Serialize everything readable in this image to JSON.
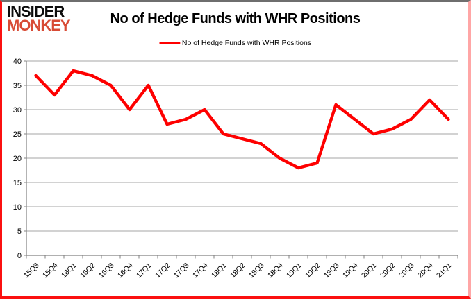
{
  "logo": {
    "top": "INSIDER",
    "bottom": "MONKEY",
    "top_color": "#0d0d0d",
    "bottom_color": "#d84b35"
  },
  "title": "No of Hedge Funds with WHR Positions",
  "legend": {
    "label": "No of Hedge Funds with WHR Positions",
    "swatch_color": "#fe0000"
  },
  "chart_data": {
    "type": "line",
    "title": "No of Hedge Funds with WHR Positions",
    "categories": [
      "15Q3",
      "15Q4",
      "16Q1",
      "16Q2",
      "16Q3",
      "16Q4",
      "17Q1",
      "17Q2",
      "17Q3",
      "17Q4",
      "18Q1",
      "18Q2",
      "18Q3",
      "18Q4",
      "19Q1",
      "19Q2",
      "19Q3",
      "19Q4",
      "20Q1",
      "20Q2",
      "20Q3",
      "20Q4",
      "21Q1"
    ],
    "series": [
      {
        "name": "No of Hedge Funds with WHR Positions",
        "color": "#fe0000",
        "values": [
          37,
          33,
          38,
          37,
          35,
          30,
          35,
          27,
          28,
          30,
          25,
          24,
          23,
          20,
          18,
          19,
          31,
          28,
          25,
          26,
          28,
          32,
          28
        ]
      }
    ],
    "xlabel": "",
    "ylabel": "",
    "ylim": [
      0,
      40
    ],
    "yticks": [
      0,
      5,
      10,
      15,
      20,
      25,
      30,
      35,
      40
    ],
    "grid": true,
    "gridline_color": "#a6a6a6",
    "axis_color": "#808080",
    "tick_label_color": "#000000",
    "legend_position": "top"
  },
  "frame": {
    "top_border": "#6e6e6e",
    "left_border": "#fb1010",
    "bottom_border": "#fb1010",
    "right_border": "#ffa6a6",
    "background": "#ffffff"
  }
}
